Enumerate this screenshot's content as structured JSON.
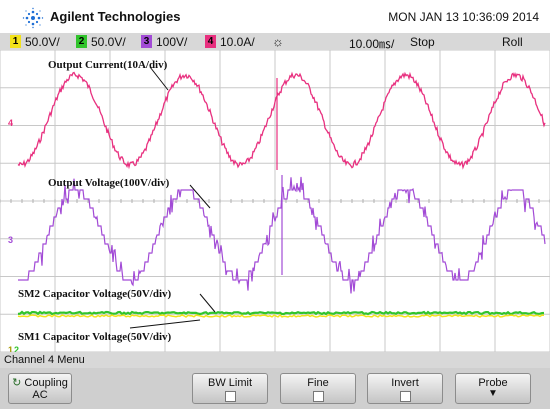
{
  "header": {
    "brand": "Agilent Technologies",
    "datetime": "MON JAN 13 10:36:09 2014"
  },
  "channels": [
    {
      "num": "1",
      "scale": "50.0V/",
      "color": "#f2e21a"
    },
    {
      "num": "2",
      "scale": "50.0V/",
      "color": "#31c42c"
    },
    {
      "num": "3",
      "scale": "100V/",
      "color": "#a24bd6"
    },
    {
      "num": "4",
      "scale": "10.0A/",
      "color": "#e8307f"
    }
  ],
  "status": {
    "trigger_icon": "☼",
    "timebase": "10.00㎳/",
    "run_state": "Stop",
    "mode": "Roll"
  },
  "labels": {
    "current": "Output Current(10A/div)",
    "voltage": "Output Voltage(100V/div)",
    "sm2": "SM2 Capacitor Voltage(50V/div)",
    "sm1": "SM1 Capacitor Voltage(50V/div)"
  },
  "markers": {
    "ch4": "4",
    "ch3": "3",
    "ch1": "1",
    "ch2": "2"
  },
  "menu": {
    "title": "Channel 4  Menu",
    "coupling_label": "Coupling",
    "coupling_value": "AC",
    "bw_limit": "BW Limit",
    "fine": "Fine",
    "invert": "Invert",
    "probe": "Probe"
  },
  "colors": {
    "current": "#e8307f",
    "voltage": "#a24bd6",
    "sm2": "#31c42c",
    "sm1": "#f2e21a"
  }
}
